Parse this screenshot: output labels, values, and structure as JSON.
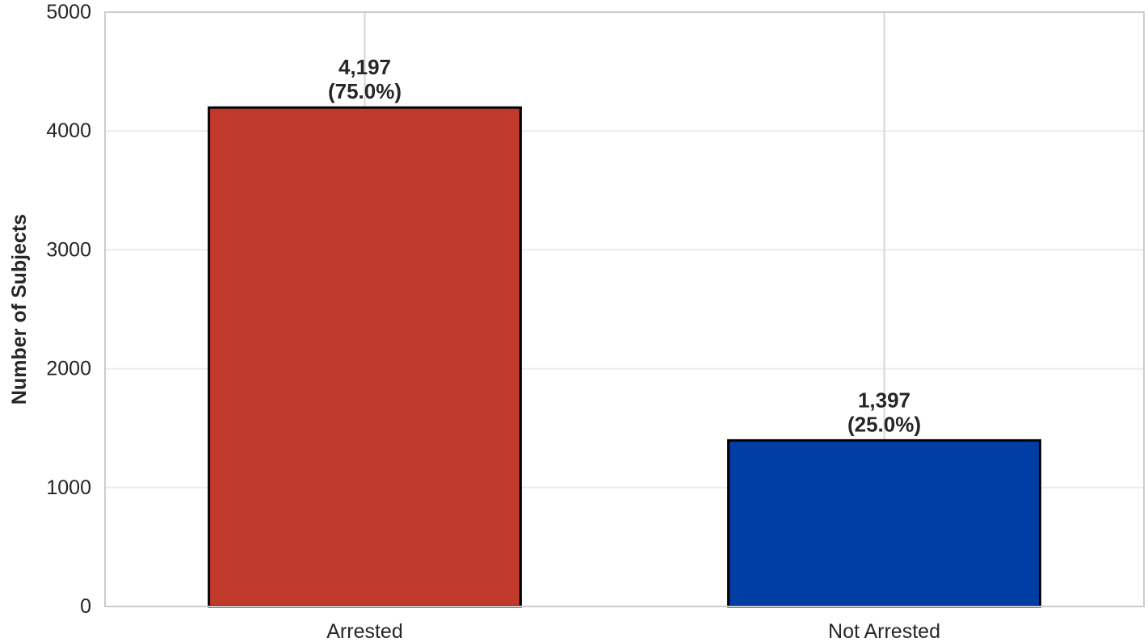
{
  "chart_data": {
    "type": "bar",
    "title": "",
    "xlabel": "",
    "ylabel": "Number of Subjects",
    "categories": [
      "Arrested",
      "Not Arrested"
    ],
    "values": [
      4197,
      1397
    ],
    "data_labels": [
      "4,197",
      "1,397"
    ],
    "percent_labels": [
      "(75.0%)",
      "(25.0%)"
    ],
    "colors": [
      "#c0392b",
      "#003da5"
    ],
    "edge_color": "#000000",
    "ylim": [
      0,
      5000
    ],
    "yticks": [
      0,
      1000,
      2000,
      3000,
      4000,
      5000
    ],
    "ytick_labels": [
      "0",
      "1000",
      "2000",
      "3000",
      "4000",
      "5000"
    ],
    "grid": true,
    "legend": "none"
  }
}
